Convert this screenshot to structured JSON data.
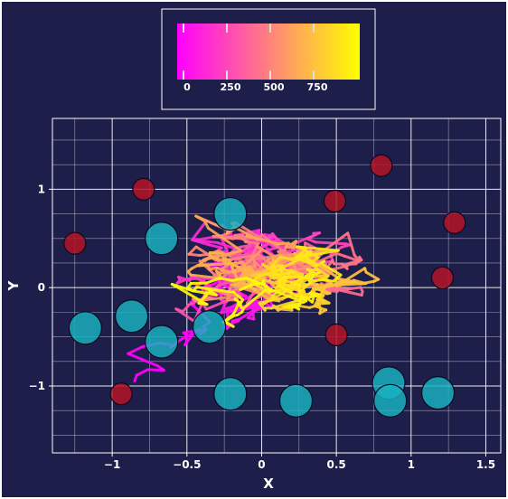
{
  "colors": {
    "background": "#1e1e4b",
    "grid": "#ffffff",
    "text": "#ffffff",
    "cyan_marker": "#1ab3c2",
    "red_marker": "#b31426",
    "colormap": [
      "#ff00ff",
      "#ff55aa",
      "#ffaa55",
      "#ffff00"
    ]
  },
  "chart_data": {
    "type": "scatter",
    "title": "",
    "xlabel": "X",
    "ylabel": "Y",
    "xlim": [
      -1.4,
      1.6
    ],
    "ylim": [
      -1.68,
      1.72
    ],
    "xticks": [
      -1,
      -0.5,
      0,
      0.5,
      1,
      1.5
    ],
    "xtick_labels": [
      "−1",
      "−0.5",
      "0",
      "0.5",
      "1",
      "1.5"
    ],
    "yticks": [
      -1,
      0,
      1
    ],
    "ytick_labels": [
      "−1",
      "0",
      "1"
    ],
    "grid": true,
    "colorbar": {
      "placement": "top-center",
      "range": [
        0,
        1000
      ],
      "ticks": [
        0,
        250,
        500,
        750
      ],
      "tick_labels": [
        "0",
        "250",
        "500",
        "750"
      ],
      "colormap": "spring"
    },
    "trajectory": {
      "description": "random-walk line colored by step index 0-1000",
      "seed": 7,
      "steps": 1000
    },
    "series": [
      {
        "marker": "cyan-circle",
        "points": [
          [
            -1.18,
            -0.41
          ],
          [
            -0.87,
            -0.29
          ],
          [
            -0.67,
            -0.55
          ],
          [
            -0.67,
            0.5
          ],
          [
            -0.35,
            -0.4
          ],
          [
            -0.21,
            0.75
          ],
          [
            -0.21,
            -1.08
          ],
          [
            0.23,
            -1.15
          ],
          [
            0.85,
            -0.97
          ],
          [
            0.86,
            -1.15
          ],
          [
            1.18,
            -1.07
          ]
        ]
      },
      {
        "marker": "red-circle",
        "points": [
          [
            -1.25,
            0.45
          ],
          [
            -0.94,
            -1.08
          ],
          [
            -0.79,
            1.0
          ],
          [
            0.49,
            0.88
          ],
          [
            0.5,
            -0.48
          ],
          [
            0.8,
            1.24
          ],
          [
            1.29,
            0.66
          ],
          [
            1.21,
            0.1
          ]
        ]
      }
    ]
  }
}
